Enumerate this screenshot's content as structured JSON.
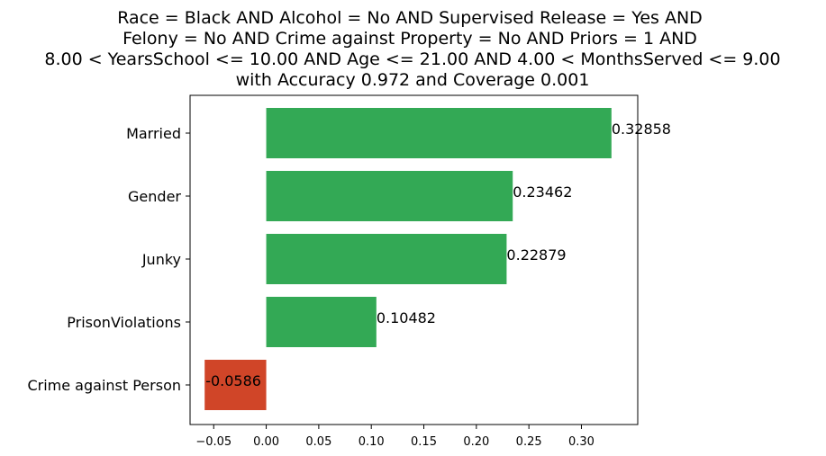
{
  "chart_data": {
    "type": "bar",
    "orientation": "horizontal",
    "title_lines": [
      "Race = Black AND Alcohol = No AND Supervised Release = Yes AND",
      "Felony = No AND Crime against Property = No AND Priors = 1 AND",
      "8.00 < YearsSchool <= 10.00 AND Age <= 21.00 AND 4.00 < MonthsServed <= 9.00",
      "with Accuracy 0.972 and Coverage 0.001"
    ],
    "categories": [
      "Married",
      "Gender",
      "Junky",
      "PrisonViolations",
      "Crime against Person"
    ],
    "values": [
      0.32858,
      0.23462,
      0.22879,
      0.10482,
      -0.0586
    ],
    "value_labels": [
      "0.32858",
      "0.23462",
      "0.22879",
      "0.10482",
      "-0.0586"
    ],
    "xticks": [
      -0.05,
      0.0,
      0.05,
      0.1,
      0.15,
      0.2,
      0.25,
      0.3
    ],
    "xtick_labels": [
      "−0.05",
      "0.00",
      "0.05",
      "0.10",
      "0.15",
      "0.20",
      "0.25",
      "0.30"
    ],
    "xlim": [
      -0.0725,
      0.3536
    ],
    "xlabel": "",
    "ylabel": "",
    "grid": false,
    "colors": {
      "positive": "#33a955",
      "negative": "#d04528"
    }
  }
}
